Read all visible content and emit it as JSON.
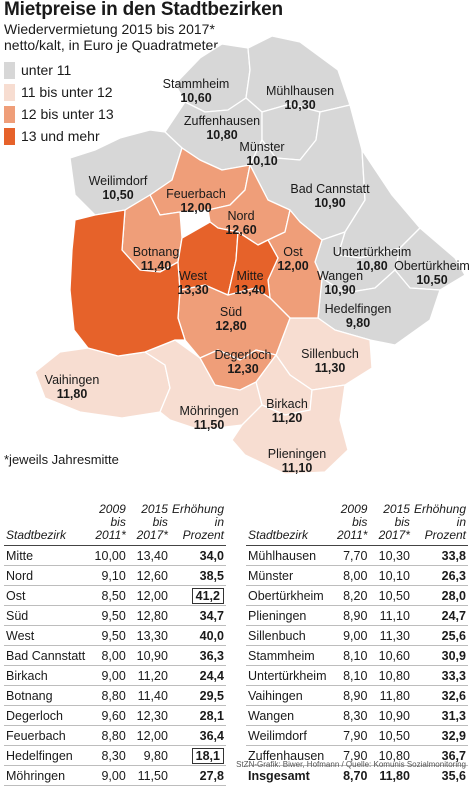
{
  "title": "Mietpreise in den Stadtbezirken",
  "subtitle1": "Wiedervermietung 2015 bis 2017*",
  "subtitle2": "netto/kalt, in Euro je Quadratmeter",
  "footnote": "*jeweils Jahresmitte",
  "credit": "StZN-Grafik: Biwer, Hofmann / Quelle: Komunis Sozialmonitoring",
  "colors": {
    "c1": "#d7d7d7",
    "c2": "#f7ddd1",
    "c3": "#ef9e79",
    "c4": "#e6622a",
    "border": "#ffffff"
  },
  "legend": [
    {
      "label": "unter 11",
      "color": "#d7d7d7"
    },
    {
      "label": "11 bis unter 12",
      "color": "#f7ddd1"
    },
    {
      "label": "12 bis unter 13",
      "color": "#ef9e79"
    },
    {
      "label": "13 und mehr",
      "color": "#e6622a"
    }
  ],
  "districts": [
    {
      "name": "Stammheim",
      "value": "10,60"
    },
    {
      "name": "Mühlhausen",
      "value": "10,30"
    },
    {
      "name": "Zuffenhausen",
      "value": "10,80"
    },
    {
      "name": "Münster",
      "value": "10,10"
    },
    {
      "name": "Weilimdorf",
      "value": "10,50"
    },
    {
      "name": "Feuerbach",
      "value": "12,00"
    },
    {
      "name": "Nord",
      "value": "12,60"
    },
    {
      "name": "Bad Cannstatt",
      "value": "10,90"
    },
    {
      "name": "Botnang",
      "value": "11,40"
    },
    {
      "name": "West",
      "value": "13,30"
    },
    {
      "name": "Mitte",
      "value": "13,40"
    },
    {
      "name": "Ost",
      "value": "12,00"
    },
    {
      "name": "Untertürkheim",
      "value": "10,80"
    },
    {
      "name": "Obertürkheim",
      "value": "10,50"
    },
    {
      "name": "Wangen",
      "value": "10,90"
    },
    {
      "name": "Süd",
      "value": "12,80"
    },
    {
      "name": "Hedelfingen",
      "value": "9,80"
    },
    {
      "name": "Degerloch",
      "value": "12,30"
    },
    {
      "name": "Sillenbuch",
      "value": "11,30"
    },
    {
      "name": "Vaihingen",
      "value": "11,80"
    },
    {
      "name": "Möhringen",
      "value": "11,50"
    },
    {
      "name": "Birkach",
      "value": "11,20"
    },
    {
      "name": "Plieningen",
      "value": "11,10"
    }
  ],
  "table": {
    "headers": {
      "name": "Stadtbezirk",
      "y1a": "2009 bis",
      "y1b": "2011*",
      "y2a": "2015 bis",
      "y2b": "2017*",
      "inca": "Erhöhung",
      "incb": "in Prozent"
    },
    "left": [
      {
        "name": "Mitte",
        "a": "10,00",
        "b": "13,40",
        "inc": "34,0"
      },
      {
        "name": "Nord",
        "a": "9,10",
        "b": "12,60",
        "inc": "38,5"
      },
      {
        "name": "Ost",
        "a": "8,50",
        "b": "12,00",
        "inc": "41,2",
        "boxed": true
      },
      {
        "name": "Süd",
        "a": "9,50",
        "b": "12,80",
        "inc": "34,7"
      },
      {
        "name": "West",
        "a": "9,50",
        "b": "13,30",
        "inc": "40,0"
      },
      {
        "name": "Bad Cannstatt",
        "a": "8,00",
        "b": "10,90",
        "inc": "36,3"
      },
      {
        "name": "Birkach",
        "a": "9,00",
        "b": "11,20",
        "inc": "24,4"
      },
      {
        "name": "Botnang",
        "a": "8,80",
        "b": "11,40",
        "inc": "29,5"
      },
      {
        "name": "Degerloch",
        "a": "9,60",
        "b": "12,30",
        "inc": "28,1"
      },
      {
        "name": "Feuerbach",
        "a": "8,80",
        "b": "12,00",
        "inc": "36,4"
      },
      {
        "name": "Hedelfingen",
        "a": "8,30",
        "b": "9,80",
        "inc": "18,1",
        "boxed": true
      },
      {
        "name": "Möhringen",
        "a": "9,00",
        "b": "11,50",
        "inc": "27,8"
      }
    ],
    "right": [
      {
        "name": "Mühlhausen",
        "a": "7,70",
        "b": "10,30",
        "inc": "33,8"
      },
      {
        "name": "Münster",
        "a": "8,00",
        "b": "10,10",
        "inc": "26,3"
      },
      {
        "name": "Obertürkheim",
        "a": "8,20",
        "b": "10,50",
        "inc": "28,0"
      },
      {
        "name": "Plieningen",
        "a": "8,90",
        "b": "11,10",
        "inc": "24,7"
      },
      {
        "name": "Sillenbuch",
        "a": "9,00",
        "b": "11,30",
        "inc": "25,6"
      },
      {
        "name": "Stammheim",
        "a": "8,10",
        "b": "10,60",
        "inc": "30,9"
      },
      {
        "name": "Untertürkheim",
        "a": "8,10",
        "b": "10,80",
        "inc": "33,3"
      },
      {
        "name": "Vaihingen",
        "a": "8,90",
        "b": "11,80",
        "inc": "32,6"
      },
      {
        "name": "Wangen",
        "a": "8,30",
        "b": "10,90",
        "inc": "31,3"
      },
      {
        "name": "Weilimdorf",
        "a": "7,90",
        "b": "10,50",
        "inc": "32,9"
      },
      {
        "name": "Zuffenhausen",
        "a": "7,90",
        "b": "10,80",
        "inc": "36,7"
      },
      {
        "name": "Insgesamt",
        "a": "8,70",
        "b": "11,80",
        "inc": "35,6",
        "total": true
      }
    ]
  }
}
